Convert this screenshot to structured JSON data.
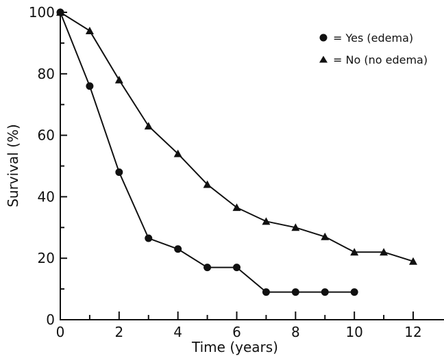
{
  "chart_data": {
    "type": "line",
    "xlabel": "Time (years)",
    "ylabel": "Survival (%)",
    "xlim": [
      0,
      12
    ],
    "ylim": [
      0,
      100
    ],
    "x_major_ticks": [
      0,
      2,
      4,
      6,
      8,
      10,
      12
    ],
    "x_minor_ticks": [
      1,
      3,
      5,
      7,
      9,
      11
    ],
    "y_major_ticks": [
      0,
      20,
      40,
      60,
      80,
      100
    ],
    "y_minor_ticks": [
      10,
      30,
      50,
      70,
      90
    ],
    "grid": false,
    "legend_position": "top-right",
    "series": [
      {
        "name": "= Yes (edema)",
        "marker": "circle",
        "x": [
          0,
          1,
          2,
          3,
          4,
          5,
          6,
          7,
          8,
          9,
          10
        ],
        "values": [
          100,
          76,
          48,
          26.5,
          23,
          17,
          17,
          9,
          9,
          9,
          9
        ]
      },
      {
        "name": "= No (no edema)",
        "marker": "triangle",
        "x": [
          0,
          1,
          2,
          3,
          4,
          5,
          6,
          7,
          8,
          9,
          10,
          11,
          12
        ],
        "values": [
          100,
          94,
          78,
          63,
          54,
          44,
          36.5,
          32,
          30,
          27,
          22,
          22,
          19
        ]
      }
    ],
    "colors": {
      "ink": "#111111",
      "background": "#ffffff"
    }
  }
}
